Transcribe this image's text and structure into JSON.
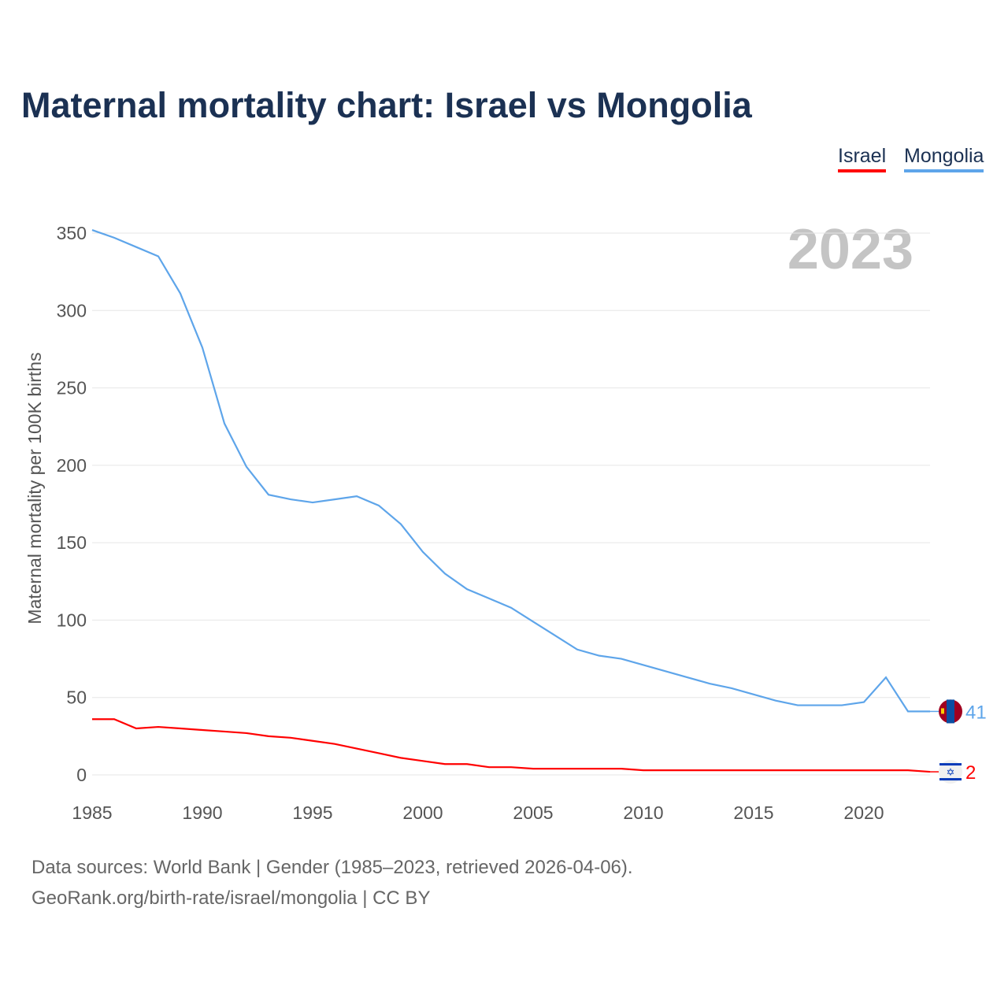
{
  "chart_data": {
    "type": "line",
    "title": "Maternal mortality chart: Israel vs Mongolia",
    "ylabel": "Maternal mortality per 100K births",
    "xlabel": "",
    "year_label": "2023",
    "x": [
      1985,
      1986,
      1987,
      1988,
      1989,
      1990,
      1991,
      1992,
      1993,
      1994,
      1995,
      1996,
      1997,
      1998,
      1999,
      2000,
      2001,
      2002,
      2003,
      2004,
      2005,
      2006,
      2007,
      2008,
      2009,
      2010,
      2011,
      2012,
      2013,
      2014,
      2015,
      2016,
      2017,
      2018,
      2019,
      2020,
      2021,
      2022,
      2023
    ],
    "series": [
      {
        "name": "Israel",
        "color": "#ff0000",
        "end_label": "2",
        "values": [
          36,
          36,
          30,
          31,
          30,
          29,
          28,
          27,
          25,
          24,
          22,
          20,
          17,
          14,
          11,
          9,
          7,
          7,
          5,
          5,
          4,
          4,
          4,
          4,
          4,
          3,
          3,
          3,
          3,
          3,
          3,
          3,
          3,
          3,
          3,
          3,
          3,
          3,
          2
        ]
      },
      {
        "name": "Mongolia",
        "color": "#5ea5ea",
        "end_label": "41",
        "values": [
          352,
          347,
          341,
          335,
          311,
          276,
          227,
          199,
          181,
          178,
          176,
          178,
          180,
          174,
          162,
          144,
          130,
          120,
          114,
          108,
          99,
          90,
          81,
          77,
          75,
          71,
          67,
          63,
          59,
          56,
          52,
          48,
          45,
          45,
          45,
          47,
          63,
          41,
          41
        ]
      }
    ],
    "xlim": [
      1985,
      2023
    ],
    "ylim": [
      0,
      350
    ],
    "xticks": [
      "1985",
      "1990",
      "1995",
      "2000",
      "2005",
      "2010",
      "2015",
      "2020"
    ],
    "yticks": [
      "0",
      "50",
      "100",
      "150",
      "200",
      "250",
      "300",
      "350"
    ],
    "grid": true,
    "legend_placement": "top-right"
  },
  "footer": {
    "line1": "Data sources: World Bank | Gender (1985–2023, retrieved 2026-04-06).",
    "line2": "GeoRank.org/birth-rate/israel/mongolia | CC BY"
  }
}
